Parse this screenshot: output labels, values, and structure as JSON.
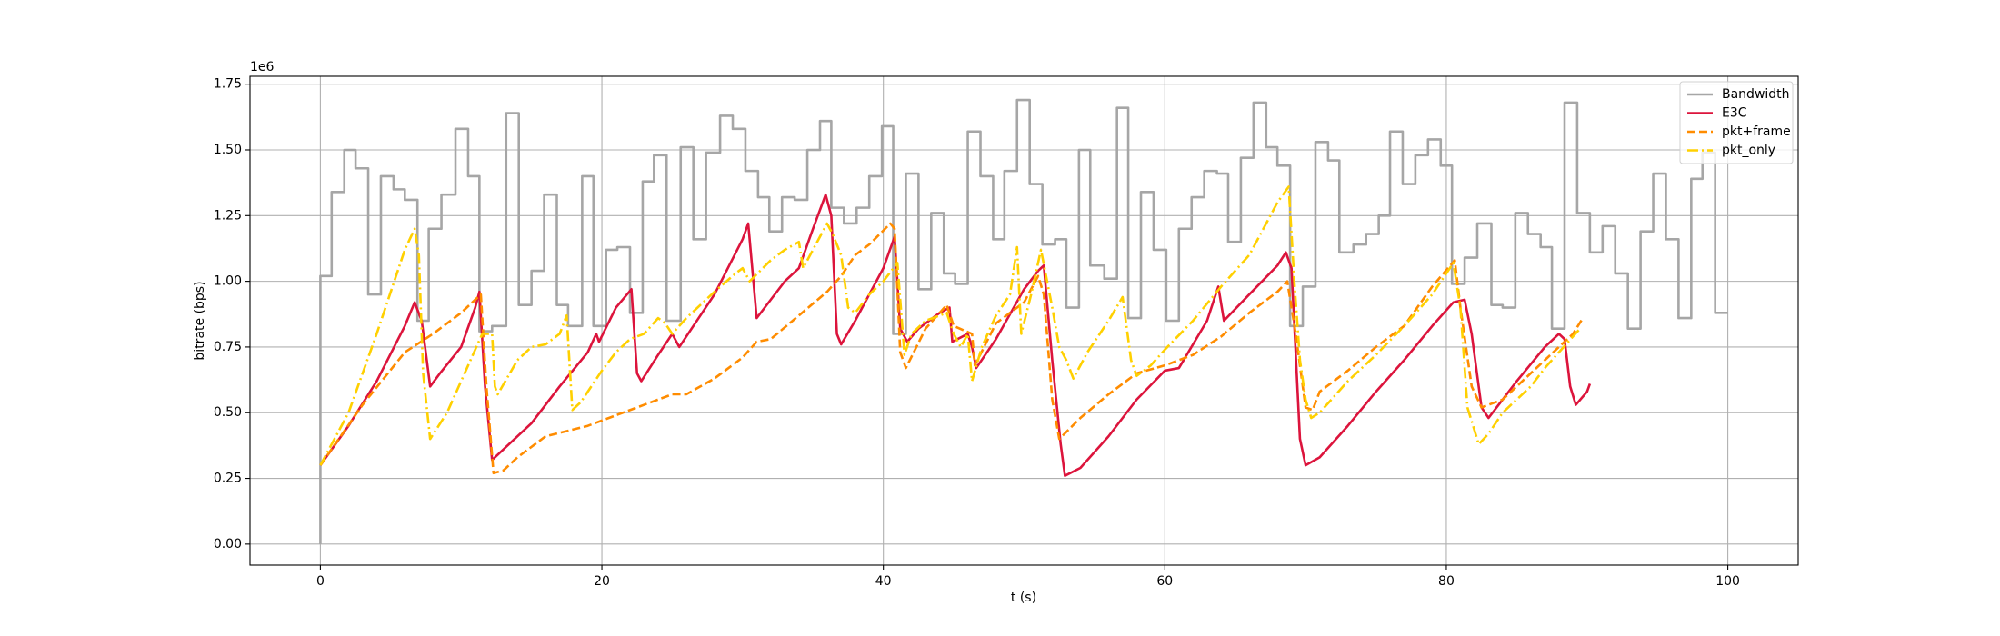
{
  "chart_data": {
    "type": "line",
    "xlabel": "t (s)",
    "ylabel": "bitrate (bps)",
    "y_offset_label": "1e6",
    "xlim": [
      -5,
      105
    ],
    "ylim": [
      -80000,
      1780000
    ],
    "xticks": [
      0,
      20,
      40,
      60,
      80,
      100
    ],
    "yticks": [
      {
        "value": 0,
        "label": "0.00"
      },
      {
        "value": 250000,
        "label": "0.25"
      },
      {
        "value": 500000,
        "label": "0.50"
      },
      {
        "value": 750000,
        "label": "0.75"
      },
      {
        "value": 1000000,
        "label": "1.00"
      },
      {
        "value": 1250000,
        "label": "1.25"
      },
      {
        "value": 1500000,
        "label": "1.50"
      },
      {
        "value": 1750000,
        "label": "1.75"
      }
    ],
    "grid": true,
    "legend": "upper right",
    "series": [
      {
        "name": "Bandwidth",
        "color": "#a6a6a6",
        "style": "solid",
        "step": true,
        "x": [
          0,
          0,
          0.8,
          1.7,
          2.5,
          3.4,
          4.3,
          5.2,
          6,
          6.9,
          7.7,
          8.6,
          9.6,
          10.5,
          11.3,
          12.2,
          13.2,
          14.1,
          15,
          15.9,
          16.8,
          17.6,
          18.6,
          19.4,
          20.3,
          21.1,
          22,
          22.9,
          23.7,
          24.6,
          25.6,
          26.5,
          27.4,
          28.4,
          29.3,
          30.2,
          31.1,
          31.9,
          32.8,
          33.7,
          34.6,
          35.5,
          36.3,
          37.2,
          38.1,
          39,
          39.9,
          40.7,
          41.6,
          42.5,
          43.4,
          44.3,
          45.1,
          46,
          46.9,
          47.8,
          48.6,
          49.5,
          50.4,
          51.3,
          52.2,
          53,
          53.9,
          54.7,
          55.7,
          56.6,
          57.4,
          58.3,
          59.2,
          60.1,
          61,
          61.9,
          62.8,
          63.7,
          64.5,
          65.4,
          66.3,
          67.2,
          68,
          68.9,
          69.8,
          70.7,
          71.6,
          72.4,
          73.4,
          74.3,
          75.2,
          76,
          76.9,
          77.8,
          78.7,
          79.6,
          80.4,
          81.3,
          82.2,
          83.2,
          84,
          84.9,
          85.8,
          86.7,
          87.5,
          88.4,
          89.3,
          90.2,
          91.1,
          92,
          92.9,
          93.8,
          94.7,
          95.6,
          96.5,
          97.4,
          98.2,
          99.1,
          100
        ],
        "values": [
          0,
          1020000.0,
          1340000.0,
          1500000.0,
          1430000.0,
          950000.0,
          1400000.0,
          1350000.0,
          1310000.0,
          850000.0,
          1200000.0,
          1330000.0,
          1580000.0,
          1400000.0,
          810000.0,
          830000.0,
          1640000.0,
          910000.0,
          1040000.0,
          1330000.0,
          910000.0,
          830000.0,
          1400000.0,
          830000.0,
          1120000.0,
          1130000.0,
          880000.0,
          1380000.0,
          1480000.0,
          850000.0,
          1510000.0,
          1160000.0,
          1490000.0,
          1630000.0,
          1580000.0,
          1420000.0,
          1320000.0,
          1190000.0,
          1320000.0,
          1310000.0,
          1500000.0,
          1610000.0,
          1280000.0,
          1220000.0,
          1280000.0,
          1400000.0,
          1590000.0,
          800000.0,
          1410000.0,
          970000.0,
          1260000.0,
          1030000.0,
          990000.0,
          1570000.0,
          1400000.0,
          1160000.0,
          1420000.0,
          1690000.0,
          1370000.0,
          1140000.0,
          1160000.0,
          900000.0,
          1500000.0,
          1060000.0,
          1010000.0,
          1660000.0,
          860000.0,
          1340000.0,
          1120000.0,
          850000.0,
          1200000.0,
          1320000.0,
          1420000.0,
          1410000.0,
          1150000.0,
          1470000.0,
          1680000.0,
          1510000.0,
          1440000.0,
          830000.0,
          980000.0,
          1530000.0,
          1460000.0,
          1110000.0,
          1140000.0,
          1180000.0,
          1250000.0,
          1570000.0,
          1370000.0,
          1480000.0,
          1540000.0,
          1440000.0,
          990000.0,
          1090000.0,
          1220000.0,
          910000.0,
          900000.0,
          1260000.0,
          1180000.0,
          1130000.0,
          820000.0,
          1680000.0,
          1260000.0,
          1110000.0,
          1210000.0,
          1030000.0,
          820000.0,
          1190000.0,
          1410000.0,
          1160000.0,
          860000.0,
          1390000.0,
          1490000.0,
          880000.0,
          880000.0
        ]
      },
      {
        "name": "E3C",
        "color": "#dc143c",
        "style": "solid",
        "x": [
          0,
          2,
          4,
          6,
          6.7,
          7.2,
          7.8,
          8.5,
          10,
          11,
          11.3,
          11.7,
          12.2,
          13,
          15,
          17,
          19,
          19.6,
          19.8,
          21,
          22.1,
          22.5,
          22.8,
          24,
          25,
          25.5,
          28,
          30,
          30.4,
          31,
          32,
          33,
          34,
          35,
          35.9,
          36.3,
          36.7,
          37,
          38,
          40,
          40.8,
          41.2,
          41.7,
          42.5,
          44,
          44.7,
          44.9,
          46,
          46.3,
          46.6,
          48,
          50,
          51,
          51.4,
          52,
          52.6,
          52.9,
          54,
          56,
          58,
          60,
          61,
          63,
          63.8,
          64.2,
          66,
          68,
          68.6,
          69,
          69.6,
          70,
          71,
          73,
          75,
          77,
          79,
          80.5,
          81.3,
          81.8,
          82.5,
          83,
          85,
          87,
          88,
          88.4,
          88.8,
          89.2,
          90,
          90.2
        ],
        "values": [
          300000.0,
          450000.0,
          620000.0,
          830000.0,
          920000.0,
          850000.0,
          600000.0,
          650000.0,
          750000.0,
          900000.0,
          960000.0,
          600000.0,
          320000.0,
          360000.0,
          460000.0,
          600000.0,
          730000.0,
          800000.0,
          770000.0,
          900000.0,
          970000.0,
          650000.0,
          620000.0,
          720000.0,
          800000.0,
          750000.0,
          950000.0,
          1160000.0,
          1220000.0,
          860000.0,
          930000.0,
          1000000.0,
          1050000.0,
          1200000.0,
          1330000.0,
          1250000.0,
          800000.0,
          760000.0,
          850000.0,
          1050000.0,
          1170000.0,
          820000.0,
          770000.0,
          820000.0,
          880000.0,
          900000.0,
          770000.0,
          800000.0,
          750000.0,
          670000.0,
          780000.0,
          970000.0,
          1040000.0,
          1060000.0,
          700000.0,
          380000.0,
          260000.0,
          290000.0,
          410000.0,
          550000.0,
          660000.0,
          670000.0,
          850000.0,
          980000.0,
          850000.0,
          950000.0,
          1060000.0,
          1110000.0,
          1050000.0,
          400000.0,
          300000.0,
          330000.0,
          450000.0,
          580000.0,
          700000.0,
          830000.0,
          920000.0,
          930000.0,
          800000.0,
          520000.0,
          480000.0,
          620000.0,
          750000.0,
          800000.0,
          780000.0,
          600000.0,
          530000.0,
          580000.0,
          610000.0
        ]
      },
      {
        "name": "pkt+frame",
        "color": "#ff8c00",
        "style": "dashed",
        "x": [
          0,
          3,
          6,
          8,
          10,
          11.4,
          11.8,
          12.3,
          13,
          14,
          16,
          19,
          21,
          23,
          25,
          26,
          28,
          30,
          31,
          32,
          34,
          36,
          37,
          38,
          39,
          40.5,
          40.8,
          41.2,
          41.6,
          43,
          44.5,
          45,
          46.3,
          46.5,
          48,
          50,
          51,
          51.4,
          52,
          52.5,
          54,
          56,
          58,
          60,
          62,
          64,
          66,
          68,
          68.7,
          69.3,
          70,
          70.5,
          71,
          73,
          75,
          77,
          79,
          80.6,
          81,
          81.8,
          82.5,
          84,
          86,
          88,
          89,
          89.7
        ],
        "values": [
          300000.0,
          530000.0,
          730000.0,
          800000.0,
          880000.0,
          950000.0,
          600000.0,
          270000.0,
          280000.0,
          330000.0,
          410000.0,
          450000.0,
          490000.0,
          530000.0,
          570000.0,
          570000.0,
          630000.0,
          710000.0,
          770000.0,
          780000.0,
          870000.0,
          960000.0,
          1020000.0,
          1100000.0,
          1140000.0,
          1220000.0,
          1200000.0,
          730000.0,
          670000.0,
          820000.0,
          910000.0,
          830000.0,
          800000.0,
          680000.0,
          840000.0,
          920000.0,
          1020000.0,
          950000.0,
          550000.0,
          400000.0,
          480000.0,
          570000.0,
          650000.0,
          680000.0,
          720000.0,
          790000.0,
          880000.0,
          960000.0,
          1000000.0,
          800000.0,
          520000.0,
          510000.0,
          580000.0,
          660000.0,
          750000.0,
          830000.0,
          980000.0,
          1080000.0,
          900000.0,
          600000.0,
          520000.0,
          550000.0,
          650000.0,
          750000.0,
          800000.0,
          860000.0
        ]
      },
      {
        "name": "pkt_only",
        "color": "#ffd000",
        "style": "dashdot",
        "x": [
          0,
          2,
          4,
          6,
          6.7,
          7,
          7.3,
          7.8,
          9,
          10.5,
          11.5,
          12.2,
          12.4,
          12.6,
          14,
          15,
          16,
          17,
          17.5,
          17.9,
          18.5,
          20,
          21,
          22,
          23,
          24,
          24.5,
          25,
          26,
          28,
          29.5,
          30,
          30.5,
          32,
          33,
          34,
          34.3,
          35,
          36,
          36.4,
          37,
          37.5,
          38,
          39,
          40,
          41,
          41.5,
          42,
          43,
          44.5,
          45,
          45.5,
          46,
          46.3,
          47,
          48,
          49,
          49.5,
          49.8,
          50.5,
          51.2,
          52,
          52.5,
          53,
          53.5,
          54.5,
          56,
          57,
          57.6,
          58,
          59,
          60,
          62,
          64,
          66,
          68,
          68.8,
          69.2,
          69.6,
          70,
          70.4,
          71,
          73,
          75,
          77,
          79,
          80.5,
          81,
          81.5,
          82.3,
          83,
          84,
          85,
          86,
          87,
          88,
          89.5
        ],
        "values": [
          300000.0,
          500000.0,
          800000.0,
          1120000.0,
          1200000.0,
          1100000.0,
          650000.0,
          400000.0,
          500000.0,
          680000.0,
          800000.0,
          800000.0,
          600000.0,
          570000.0,
          700000.0,
          750000.0,
          760000.0,
          800000.0,
          870000.0,
          510000.0,
          540000.0,
          660000.0,
          730000.0,
          780000.0,
          800000.0,
          860000.0,
          840000.0,
          800000.0,
          860000.0,
          960000.0,
          1030000.0,
          1050000.0,
          1000000.0,
          1080000.0,
          1120000.0,
          1150000.0,
          1050000.0,
          1120000.0,
          1220000.0,
          1180000.0,
          1100000.0,
          900000.0,
          880000.0,
          950000.0,
          1000000.0,
          1070000.0,
          720000.0,
          800000.0,
          850000.0,
          880000.0,
          800000.0,
          750000.0,
          800000.0,
          620000.0,
          750000.0,
          870000.0,
          950000.0,
          1130000.0,
          800000.0,
          950000.0,
          1120000.0,
          900000.0,
          750000.0,
          700000.0,
          630000.0,
          730000.0,
          850000.0,
          940000.0,
          700000.0,
          640000.0,
          680000.0,
          740000.0,
          850000.0,
          980000.0,
          1100000.0,
          1300000.0,
          1360000.0,
          1000000.0,
          700000.0,
          550000.0,
          480000.0,
          500000.0,
          620000.0,
          720000.0,
          830000.0,
          950000.0,
          1070000.0,
          900000.0,
          520000.0,
          380000.0,
          420000.0,
          500000.0,
          550000.0,
          600000.0,
          670000.0,
          730000.0,
          820000.0
        ]
      }
    ]
  }
}
